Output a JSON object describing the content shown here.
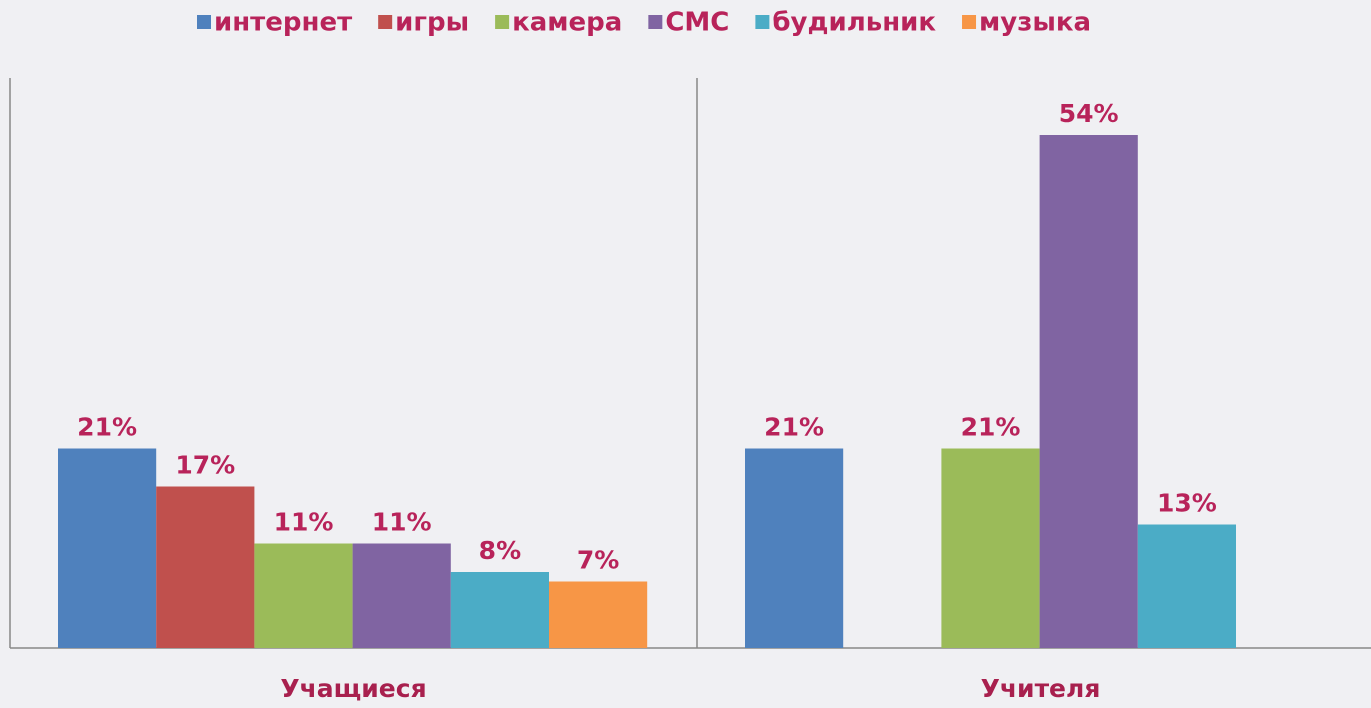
{
  "chart_data": {
    "type": "bar",
    "categories": [
      "Учащиеся",
      "Учителя"
    ],
    "series": [
      {
        "name": "интернет",
        "color": "#4f81bd",
        "values": [
          21,
          21
        ],
        "value_labels": [
          "21%",
          "21%"
        ]
      },
      {
        "name": "игры",
        "color": "#c0504d",
        "values": [
          17,
          null
        ],
        "value_labels": [
          "17%",
          null
        ]
      },
      {
        "name": "камера",
        "color": "#9bbb59",
        "values": [
          11,
          21
        ],
        "value_labels": [
          "11%",
          "21%"
        ]
      },
      {
        "name": "СМС",
        "color": "#8064a2",
        "values": [
          11,
          54
        ],
        "value_labels": [
          "11%",
          "54%"
        ]
      },
      {
        "name": "будильник",
        "color": "#4bacc6",
        "values": [
          8,
          13
        ],
        "value_labels": [
          "8%",
          "13%"
        ]
      },
      {
        "name": "музыка",
        "color": "#f79646",
        "values": [
          7,
          null
        ],
        "value_labels": [
          "7%",
          null
        ]
      }
    ],
    "ylim": [
      0,
      60
    ],
    "legend": "top",
    "grid": false
  }
}
